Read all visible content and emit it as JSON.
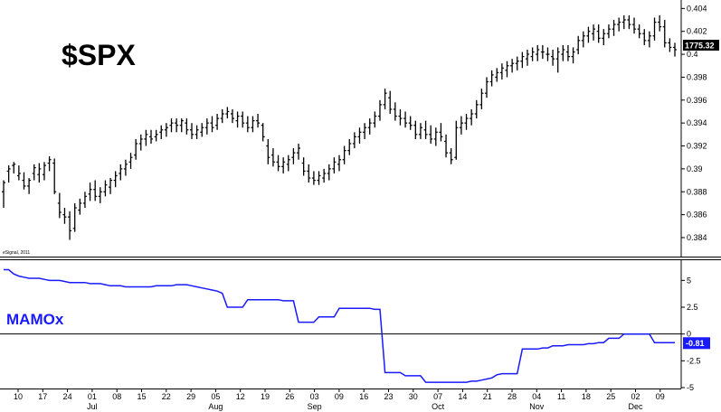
{
  "chart_data": [
    {
      "type": "ohlc",
      "title": "$SPX",
      "credit": "eSignal, 2011",
      "last_value_label": "1775.32",
      "ylim": [
        0.3825,
        0.4045
      ],
      "y_ticks": [
        "0.404",
        "0.402",
        "0.4",
        "0.398",
        "0.396",
        "0.394",
        "0.392",
        "0.39",
        "0.388",
        "0.386",
        "0.384"
      ],
      "y_tick_values": [
        0.404,
        0.402,
        0.4,
        0.398,
        0.396,
        0.394,
        0.392,
        0.39,
        0.388,
        0.386,
        0.384
      ],
      "colors": {
        "bars": "#000000",
        "tag_bg": "#000000",
        "tag_text": "#ffffff"
      },
      "bars": [
        [
          0.388,
          0.389,
          0.3866,
          0.3888
        ],
        [
          0.3898,
          0.3903,
          0.3888,
          0.39
        ],
        [
          0.3903,
          0.3906,
          0.3896,
          0.3904
        ],
        [
          0.3894,
          0.3903,
          0.389,
          0.3896
        ],
        [
          0.389,
          0.3897,
          0.3882,
          0.3885
        ],
        [
          0.3885,
          0.3892,
          0.3878,
          0.389
        ],
        [
          0.3896,
          0.3904,
          0.389,
          0.3901
        ],
        [
          0.3895,
          0.3905,
          0.3888,
          0.39
        ],
        [
          0.3895,
          0.3906,
          0.389,
          0.3903
        ],
        [
          0.3905,
          0.3911,
          0.3898,
          0.3908
        ],
        [
          0.3905,
          0.3909,
          0.3878,
          0.388
        ],
        [
          0.387,
          0.3879,
          0.3857,
          0.3862
        ],
        [
          0.386,
          0.3866,
          0.3852,
          0.3858
        ],
        [
          0.3858,
          0.3863,
          0.3838,
          0.3846
        ],
        [
          0.3848,
          0.387,
          0.3845,
          0.3866
        ],
        [
          0.3864,
          0.3874,
          0.386,
          0.387
        ],
        [
          0.387,
          0.388,
          0.3866,
          0.3876
        ],
        [
          0.3878,
          0.3888,
          0.3872,
          0.3882
        ],
        [
          0.3882,
          0.389,
          0.3872,
          0.3876
        ],
        [
          0.3876,
          0.3884,
          0.387,
          0.388
        ],
        [
          0.388,
          0.389,
          0.3876,
          0.3886
        ],
        [
          0.3884,
          0.3892,
          0.3878,
          0.389
        ],
        [
          0.389,
          0.3898,
          0.3884,
          0.3894
        ],
        [
          0.3896,
          0.3904,
          0.389,
          0.39
        ],
        [
          0.39,
          0.3908,
          0.3894,
          0.3904
        ],
        [
          0.3906,
          0.3914,
          0.39,
          0.391
        ],
        [
          0.3912,
          0.3926,
          0.3908,
          0.3922
        ],
        [
          0.3922,
          0.393,
          0.3916,
          0.3926
        ],
        [
          0.3926,
          0.3934,
          0.392,
          0.393
        ],
        [
          0.3928,
          0.3934,
          0.3922,
          0.3926
        ],
        [
          0.3928,
          0.3934,
          0.3924,
          0.393
        ],
        [
          0.3932,
          0.3938,
          0.3926,
          0.3934
        ],
        [
          0.3934,
          0.394,
          0.3928,
          0.3936
        ],
        [
          0.3938,
          0.3944,
          0.3932,
          0.394
        ],
        [
          0.394,
          0.3944,
          0.3932,
          0.3938
        ],
        [
          0.3938,
          0.3944,
          0.3932,
          0.3942
        ],
        [
          0.394,
          0.3944,
          0.393,
          0.3934
        ],
        [
          0.3934,
          0.394,
          0.3926,
          0.393
        ],
        [
          0.393,
          0.3938,
          0.3926,
          0.3934
        ],
        [
          0.3932,
          0.394,
          0.3928,
          0.3936
        ],
        [
          0.3936,
          0.3944,
          0.393,
          0.394
        ],
        [
          0.394,
          0.3946,
          0.3932,
          0.3936
        ],
        [
          0.3938,
          0.3948,
          0.3934,
          0.3944
        ],
        [
          0.3944,
          0.3952,
          0.394,
          0.3948
        ],
        [
          0.3948,
          0.3954,
          0.3944,
          0.395
        ],
        [
          0.3948,
          0.3952,
          0.394,
          0.3944
        ],
        [
          0.3942,
          0.395,
          0.3936,
          0.3946
        ],
        [
          0.3946,
          0.395,
          0.3936,
          0.394
        ],
        [
          0.394,
          0.3946,
          0.3932,
          0.3936
        ],
        [
          0.3936,
          0.3946,
          0.3932,
          0.3942
        ],
        [
          0.3942,
          0.3948,
          0.3936,
          0.394
        ],
        [
          0.3938,
          0.394,
          0.3924,
          0.3928
        ],
        [
          0.392,
          0.3926,
          0.3904,
          0.391
        ],
        [
          0.3912,
          0.3918,
          0.3902,
          0.3906
        ],
        [
          0.3906,
          0.3912,
          0.3898,
          0.3902
        ],
        [
          0.3902,
          0.391,
          0.3896,
          0.3906
        ],
        [
          0.3904,
          0.3912,
          0.3898,
          0.3908
        ],
        [
          0.391,
          0.3918,
          0.3904,
          0.3914
        ],
        [
          0.3914,
          0.3922,
          0.3908,
          0.3918
        ],
        [
          0.3905,
          0.391,
          0.3894,
          0.3898
        ],
        [
          0.3898,
          0.3904,
          0.3888,
          0.3892
        ],
        [
          0.3892,
          0.3898,
          0.3886,
          0.389
        ],
        [
          0.389,
          0.3898,
          0.3886,
          0.3894
        ],
        [
          0.3892,
          0.39,
          0.3888,
          0.3896
        ],
        [
          0.3896,
          0.3904,
          0.389,
          0.39
        ],
        [
          0.39,
          0.391,
          0.3896,
          0.3906
        ],
        [
          0.3904,
          0.3912,
          0.3898,
          0.3908
        ],
        [
          0.3908,
          0.392,
          0.3904,
          0.3916
        ],
        [
          0.3916,
          0.3926,
          0.3912,
          0.3922
        ],
        [
          0.3922,
          0.3932,
          0.3918,
          0.3928
        ],
        [
          0.3928,
          0.3936,
          0.3922,
          0.3932
        ],
        [
          0.3932,
          0.394,
          0.3926,
          0.3936
        ],
        [
          0.3936,
          0.3944,
          0.393,
          0.394
        ],
        [
          0.394,
          0.395,
          0.3936,
          0.3946
        ],
        [
          0.3946,
          0.396,
          0.3942,
          0.3956
        ],
        [
          0.3956,
          0.397,
          0.3952,
          0.3966
        ],
        [
          0.3962,
          0.3968,
          0.3948,
          0.3952
        ],
        [
          0.3952,
          0.3958,
          0.3942,
          0.3946
        ],
        [
          0.3946,
          0.3952,
          0.3938,
          0.3944
        ],
        [
          0.3944,
          0.395,
          0.3936,
          0.394
        ],
        [
          0.394,
          0.3946,
          0.3934,
          0.3938
        ],
        [
          0.3938,
          0.3942,
          0.3926,
          0.393
        ],
        [
          0.393,
          0.394,
          0.3926,
          0.3936
        ],
        [
          0.3934,
          0.3942,
          0.3926,
          0.393
        ],
        [
          0.393,
          0.3938,
          0.3922,
          0.3926
        ],
        [
          0.3926,
          0.3936,
          0.392,
          0.3932
        ],
        [
          0.3932,
          0.394,
          0.3924,
          0.3928
        ],
        [
          0.3924,
          0.393,
          0.391,
          0.3914
        ],
        [
          0.3914,
          0.3918,
          0.3904,
          0.3908
        ],
        [
          0.391,
          0.3942,
          0.3908,
          0.3936
        ],
        [
          0.3936,
          0.3946,
          0.393,
          0.394
        ],
        [
          0.394,
          0.3948,
          0.3934,
          0.3944
        ],
        [
          0.3944,
          0.3952,
          0.3938,
          0.3948
        ],
        [
          0.3948,
          0.396,
          0.3944,
          0.3956
        ],
        [
          0.3956,
          0.397,
          0.3952,
          0.3966
        ],
        [
          0.3966,
          0.398,
          0.3962,
          0.3976
        ],
        [
          0.3976,
          0.3986,
          0.3972,
          0.3982
        ],
        [
          0.398,
          0.3988,
          0.3976,
          0.3984
        ],
        [
          0.3984,
          0.3992,
          0.3978,
          0.3988
        ],
        [
          0.3986,
          0.3994,
          0.398,
          0.399
        ],
        [
          0.399,
          0.3996,
          0.3984,
          0.3992
        ],
        [
          0.3992,
          0.3998,
          0.3986,
          0.3994
        ],
        [
          0.3994,
          0.4002,
          0.3988,
          0.3998
        ],
        [
          0.3996,
          0.4004,
          0.399,
          0.4
        ],
        [
          0.3998,
          0.4006,
          0.3994,
          0.4002
        ],
        [
          0.4,
          0.4008,
          0.3994,
          0.4004
        ],
        [
          0.4002,
          0.4008,
          0.3996,
          0.4002
        ],
        [
          0.4,
          0.4006,
          0.3994,
          0.4
        ],
        [
          0.3998,
          0.4004,
          0.399,
          0.3996
        ],
        [
          0.3996,
          0.4006,
          0.3984,
          0.4002
        ],
        [
          0.4,
          0.4008,
          0.3994,
          0.4004
        ],
        [
          0.4002,
          0.4008,
          0.3994,
          0.3998
        ],
        [
          0.3998,
          0.4006,
          0.3992,
          0.4002
        ],
        [
          0.4004,
          0.4016,
          0.4,
          0.4012
        ],
        [
          0.4012,
          0.402,
          0.4006,
          0.4016
        ],
        [
          0.4016,
          0.4024,
          0.401,
          0.402
        ],
        [
          0.4018,
          0.4026,
          0.4012,
          0.4022
        ],
        [
          0.402,
          0.4026,
          0.401,
          0.4014
        ],
        [
          0.4014,
          0.4022,
          0.4008,
          0.4018
        ],
        [
          0.4018,
          0.4026,
          0.4014,
          0.4022
        ],
        [
          0.4022,
          0.403,
          0.4016,
          0.4026
        ],
        [
          0.4026,
          0.4032,
          0.402,
          0.4028
        ],
        [
          0.4028,
          0.4034,
          0.4022,
          0.403
        ],
        [
          0.403,
          0.4034,
          0.4022,
          0.4026
        ],
        [
          0.4026,
          0.4032,
          0.4018,
          0.4022
        ],
        [
          0.4022,
          0.4026,
          0.4014,
          0.4018
        ],
        [
          0.4018,
          0.4022,
          0.4008,
          0.4012
        ],
        [
          0.4012,
          0.402,
          0.4006,
          0.4016
        ],
        [
          0.4016,
          0.4032,
          0.4012,
          0.4028
        ],
        [
          0.4028,
          0.4034,
          0.402,
          0.4024
        ],
        [
          0.4024,
          0.403,
          0.4006,
          0.401
        ],
        [
          0.401,
          0.4014,
          0.4002,
          0.4006
        ],
        [
          0.4006,
          0.401,
          0.3998,
          0.4004
        ]
      ]
    },
    {
      "type": "line",
      "name": "MAMOx",
      "ylim": [
        -5,
        6.8
      ],
      "y_ticks": [
        "5",
        "2.5",
        "0",
        "-2.5",
        "-5"
      ],
      "y_tick_values": [
        5,
        2.5,
        0,
        -2.5,
        -5
      ],
      "zero_line": 0,
      "last_value_label": "-0.81",
      "colors": {
        "line": "#1a1aff",
        "zero_line": "#000000",
        "tag_bg": "#1a1aff",
        "tag_text": "#ffffff"
      },
      "values": [
        6.0,
        6.0,
        5.6,
        5.4,
        5.3,
        5.2,
        5.2,
        5.2,
        5.1,
        5.0,
        5.0,
        5.0,
        4.9,
        4.8,
        4.8,
        4.8,
        4.8,
        4.7,
        4.7,
        4.7,
        4.6,
        4.5,
        4.5,
        4.5,
        4.4,
        4.4,
        4.4,
        4.4,
        4.4,
        4.4,
        4.5,
        4.5,
        4.5,
        4.5,
        4.6,
        4.6,
        4.6,
        4.5,
        4.4,
        4.3,
        4.2,
        4.1,
        4.0,
        3.8,
        2.5,
        2.5,
        2.5,
        2.5,
        3.2,
        3.2,
        3.2,
        3.2,
        3.2,
        3.2,
        3.2,
        3.1,
        3.1,
        3.1,
        1.1,
        1.1,
        1.1,
        1.1,
        1.6,
        1.6,
        1.6,
        1.6,
        2.4,
        2.4,
        2.4,
        2.4,
        2.4,
        2.4,
        2.4,
        2.3,
        2.3,
        -3.6,
        -3.6,
        -3.6,
        -3.6,
        -3.9,
        -3.9,
        -3.9,
        -3.9,
        -4.5,
        -4.5,
        -4.5,
        -4.5,
        -4.5,
        -4.5,
        -4.5,
        -4.5,
        -4.5,
        -4.4,
        -4.4,
        -4.3,
        -4.2,
        -4.1,
        -3.8,
        -3.7,
        -3.7,
        -3.7,
        -3.7,
        -1.4,
        -1.4,
        -1.4,
        -1.4,
        -1.3,
        -1.3,
        -1.1,
        -1.1,
        -1.1,
        -1.0,
        -1.0,
        -1.0,
        -1.0,
        -0.9,
        -0.9,
        -0.8,
        -0.8,
        -0.4,
        -0.4,
        -0.4,
        0.0,
        0.0,
        0.0,
        0.0,
        0.0,
        0.0,
        -0.8,
        -0.8,
        -0.8,
        -0.81,
        -0.81
      ]
    }
  ],
  "x_axis": {
    "days": [
      "10",
      "17",
      "24",
      "01",
      "08",
      "15",
      "22",
      "29",
      "05",
      "12",
      "19",
      "26",
      "03",
      "09",
      "16",
      "23",
      "30",
      "07",
      "14",
      "21",
      "28",
      "04",
      "11",
      "18",
      "25",
      "02",
      "09"
    ],
    "months": [
      "Jul",
      "Aug",
      "Sep",
      "Oct",
      "Nov",
      "Dec"
    ],
    "month_tick_index": [
      3,
      8,
      12,
      17,
      21,
      25
    ]
  }
}
